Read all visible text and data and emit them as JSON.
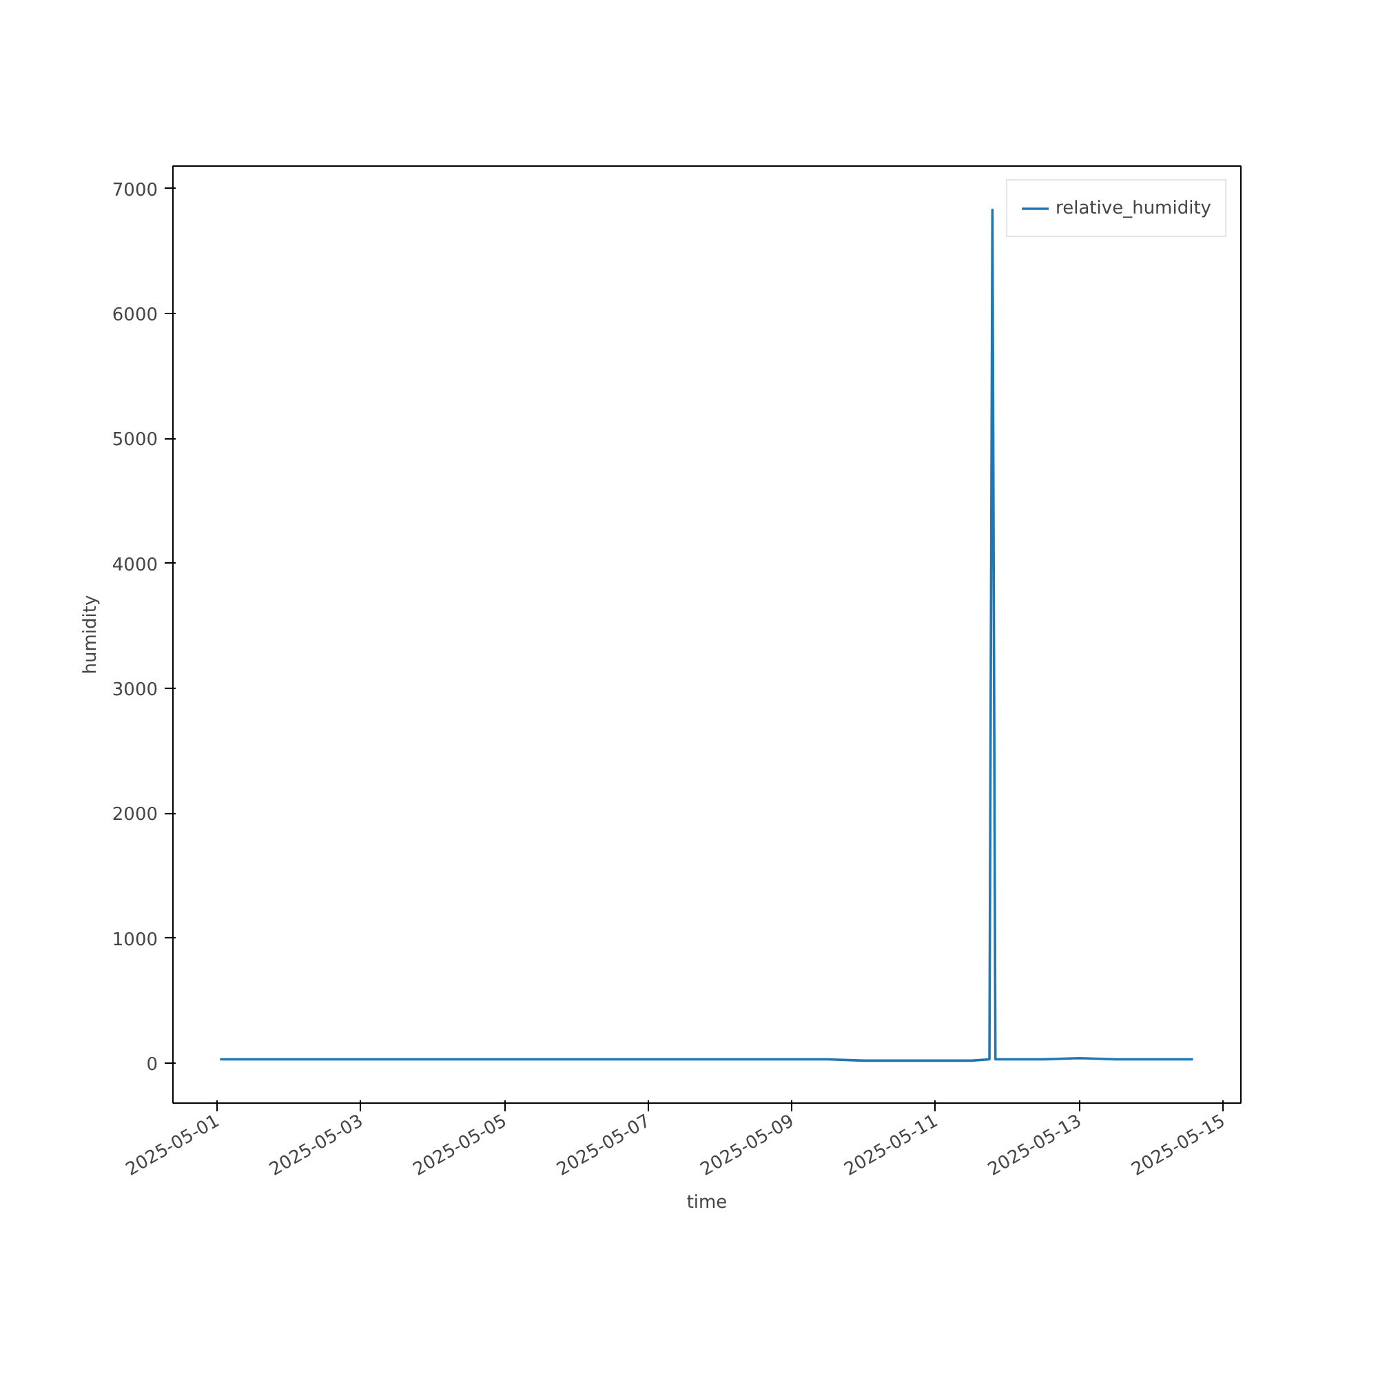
{
  "chart_data": {
    "type": "line",
    "xlabel": "time",
    "ylabel": "humidity",
    "legend": "top right",
    "grid": false,
    "x": [
      "2025-05-01T01:00",
      "2025-05-01T12:00",
      "2025-05-02T00:00",
      "2025-05-02T12:00",
      "2025-05-03T00:00",
      "2025-05-03T12:00",
      "2025-05-04T00:00",
      "2025-05-04T12:00",
      "2025-05-05T00:00",
      "2025-05-05T12:00",
      "2025-05-06T00:00",
      "2025-05-06T12:00",
      "2025-05-07T00:00",
      "2025-05-07T12:00",
      "2025-05-08T00:00",
      "2025-05-08T12:00",
      "2025-05-09T00:00",
      "2025-05-09T12:00",
      "2025-05-10T00:00",
      "2025-05-10T12:00",
      "2025-05-11T00:00",
      "2025-05-11T12:00",
      "2025-05-11T18:00",
      "2025-05-11T19:00",
      "2025-05-11T20:00",
      "2025-05-12T00:00",
      "2025-05-12T12:00",
      "2025-05-13T00:00",
      "2025-05-13T12:00",
      "2025-05-14T00:00",
      "2025-05-14T14:00"
    ],
    "series": [
      {
        "name": "relative_humidity",
        "color": "#1f77b4",
        "values": [
          30,
          30,
          30,
          30,
          30,
          30,
          30,
          30,
          30,
          30,
          30,
          30,
          30,
          30,
          30,
          30,
          30,
          30,
          20,
          20,
          20,
          20,
          30,
          6830,
          30,
          30,
          30,
          40,
          30,
          30,
          30
        ]
      }
    ],
    "xlim": [
      "2025-04-30T09:15",
      "2025-05-15T06:00"
    ],
    "ylim": [
      -320,
      7180
    ],
    "xticks": [
      "2025-05-01",
      "2025-05-03",
      "2025-05-05",
      "2025-05-07",
      "2025-05-09",
      "2025-05-11",
      "2025-05-13",
      "2025-05-15"
    ],
    "yticks": [
      0,
      1000,
      2000,
      3000,
      4000,
      5000,
      6000,
      7000
    ]
  }
}
